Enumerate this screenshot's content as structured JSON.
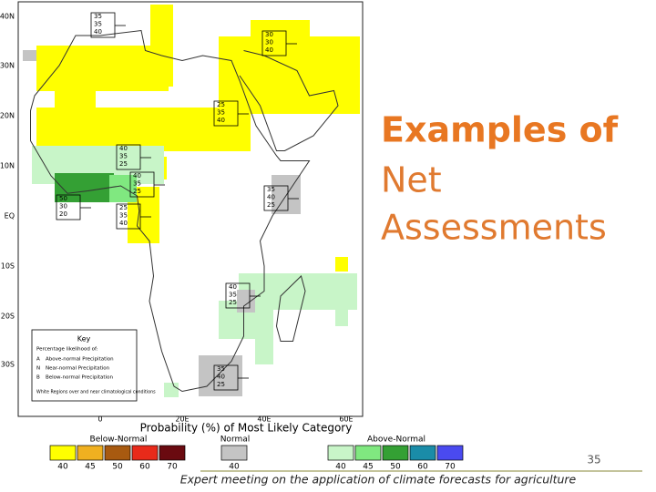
{
  "title": {
    "line1": "Examples of",
    "line2": "Net",
    "line3": "Assessments"
  },
  "page_number": "35",
  "footer": "Expert meeting on the application of climate forecasts for agriculture",
  "map": {
    "lat_labels": [
      "40N",
      "30N",
      "20N",
      "10N",
      "EQ",
      "10S",
      "20S",
      "30S"
    ],
    "lon_labels": [
      "0",
      "20E",
      "40E",
      "60E"
    ],
    "forecast_boxes": [
      [
        "35",
        "35",
        "40"
      ],
      [
        "30",
        "30",
        "40"
      ],
      [
        "25",
        "35",
        "40"
      ],
      [
        "40",
        "35",
        "25"
      ],
      [
        "50",
        "30",
        "20"
      ],
      [
        "40",
        "35",
        "25"
      ],
      [
        "25",
        "35",
        "40"
      ],
      [
        "35",
        "40",
        "25"
      ],
      [
        "40",
        "35",
        "25"
      ],
      [
        "35",
        "40",
        "25"
      ]
    ],
    "key": {
      "title": "Key",
      "subtitle": "Percentage likelihood of:",
      "rows": [
        {
          "letter": "A",
          "text": "Above-normal Precipitation"
        },
        {
          "letter": "N",
          "text": "Near-normal Precipitation"
        },
        {
          "letter": "B",
          "text": "Below-normal Precipitation"
        }
      ],
      "note": "White Regions over and near climatological conditions"
    }
  },
  "legend": {
    "title": "Probability (%) of Most Likely Category",
    "groups": [
      {
        "name": "Below-Normal",
        "labels": [
          "40",
          "45",
          "50",
          "60",
          "70"
        ],
        "colors": [
          "#ffff00",
          "#f0b020",
          "#a85a10",
          "#e82a1a",
          "#6a0a10"
        ]
      },
      {
        "name": "Normal",
        "labels": [
          "40"
        ],
        "colors": [
          "#c4c4c4"
        ]
      },
      {
        "name": "Above-Normal",
        "labels": [
          "40",
          "45",
          "50",
          "60",
          "70"
        ],
        "colors": [
          "#c8f5c8",
          "#80e880",
          "#34a034",
          "#1a8ca8",
          "#4a4af0"
        ]
      }
    ]
  }
}
